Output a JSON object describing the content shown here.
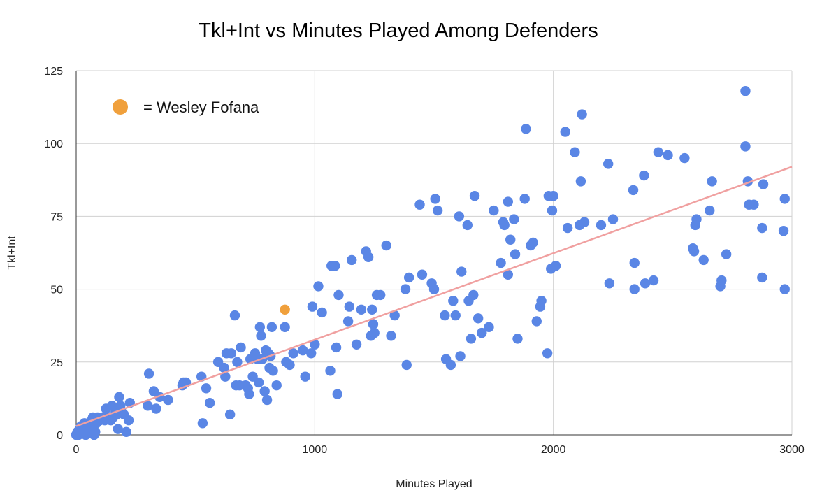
{
  "chart_data": {
    "type": "scatter",
    "title": "Tkl+Int vs Minutes Played Among Defenders",
    "xlabel": "Minutes Played",
    "ylabel": "Tkl+Int",
    "xlim": [
      0,
      3000
    ],
    "ylim": [
      0,
      125
    ],
    "xticks": [
      "0",
      "1000",
      "2000",
      "3000"
    ],
    "xtick_values": [
      0,
      1000,
      2000,
      3000
    ],
    "yticks": [
      "0",
      "25",
      "50",
      "75",
      "100",
      "125"
    ],
    "ytick_values": [
      0,
      25,
      50,
      75,
      100,
      125
    ],
    "grid": true,
    "legend": {
      "placement": "top-left",
      "label": "= Wesley Fofana",
      "color": "#f0a03c"
    },
    "trendline": {
      "x": [
        0,
        3000
      ],
      "y": [
        3,
        92
      ],
      "color": "#f0a0a0"
    },
    "colors": {
      "points": "#5a86e5",
      "highlight": "#f0a03c"
    },
    "highlight": {
      "x": 875,
      "y": 43
    },
    "points": [
      [
        0,
        0
      ],
      [
        5,
        1
      ],
      [
        10,
        0
      ],
      [
        15,
        2
      ],
      [
        20,
        3
      ],
      [
        25,
        1
      ],
      [
        30,
        2
      ],
      [
        35,
        4
      ],
      [
        40,
        0
      ],
      [
        45,
        3
      ],
      [
        50,
        2
      ],
      [
        55,
        1
      ],
      [
        60,
        3
      ],
      [
        65,
        5
      ],
      [
        70,
        6
      ],
      [
        75,
        0
      ],
      [
        80,
        1
      ],
      [
        85,
        4
      ],
      [
        90,
        6
      ],
      [
        100,
        5
      ],
      [
        110,
        6
      ],
      [
        120,
        5
      ],
      [
        125,
        9
      ],
      [
        135,
        6
      ],
      [
        145,
        5
      ],
      [
        150,
        10
      ],
      [
        155,
        6
      ],
      [
        165,
        8
      ],
      [
        170,
        7
      ],
      [
        175,
        2
      ],
      [
        180,
        13
      ],
      [
        185,
        10
      ],
      [
        190,
        8
      ],
      [
        200,
        7
      ],
      [
        210,
        1
      ],
      [
        220,
        5
      ],
      [
        225,
        11
      ],
      [
        300,
        10
      ],
      [
        305,
        21
      ],
      [
        325,
        15
      ],
      [
        335,
        9
      ],
      [
        350,
        13
      ],
      [
        385,
        12
      ],
      [
        445,
        17
      ],
      [
        450,
        18
      ],
      [
        460,
        18
      ],
      [
        525,
        20
      ],
      [
        530,
        4
      ],
      [
        545,
        16
      ],
      [
        560,
        11
      ],
      [
        595,
        25
      ],
      [
        620,
        23
      ],
      [
        625,
        20
      ],
      [
        630,
        28
      ],
      [
        645,
        7
      ],
      [
        650,
        28
      ],
      [
        665,
        41
      ],
      [
        670,
        17
      ],
      [
        675,
        25
      ],
      [
        685,
        17
      ],
      [
        690,
        30
      ],
      [
        710,
        17
      ],
      [
        720,
        16
      ],
      [
        725,
        14
      ],
      [
        730,
        26
      ],
      [
        740,
        20
      ],
      [
        750,
        28
      ],
      [
        760,
        26
      ],
      [
        765,
        18
      ],
      [
        770,
        37
      ],
      [
        775,
        34
      ],
      [
        780,
        26
      ],
      [
        790,
        15
      ],
      [
        795,
        29
      ],
      [
        800,
        12
      ],
      [
        805,
        28
      ],
      [
        810,
        23
      ],
      [
        815,
        27
      ],
      [
        820,
        37
      ],
      [
        825,
        22
      ],
      [
        840,
        17
      ],
      [
        875,
        37
      ],
      [
        880,
        25
      ],
      [
        895,
        24
      ],
      [
        910,
        28
      ],
      [
        950,
        29
      ],
      [
        960,
        20
      ],
      [
        985,
        28
      ],
      [
        990,
        44
      ],
      [
        1000,
        31
      ],
      [
        1015,
        51
      ],
      [
        1030,
        42
      ],
      [
        1065,
        22
      ],
      [
        1070,
        58
      ],
      [
        1085,
        58
      ],
      [
        1090,
        30
      ],
      [
        1095,
        14
      ],
      [
        1100,
        48
      ],
      [
        1140,
        39
      ],
      [
        1145,
        44
      ],
      [
        1155,
        60
      ],
      [
        1175,
        31
      ],
      [
        1195,
        43
      ],
      [
        1215,
        63
      ],
      [
        1225,
        61
      ],
      [
        1235,
        34
      ],
      [
        1240,
        43
      ],
      [
        1245,
        38
      ],
      [
        1250,
        35
      ],
      [
        1260,
        48
      ],
      [
        1275,
        48
      ],
      [
        1300,
        65
      ],
      [
        1320,
        34
      ],
      [
        1335,
        41
      ],
      [
        1380,
        50
      ],
      [
        1385,
        24
      ],
      [
        1395,
        54
      ],
      [
        1440,
        79
      ],
      [
        1450,
        55
      ],
      [
        1490,
        52
      ],
      [
        1500,
        50
      ],
      [
        1505,
        81
      ],
      [
        1515,
        77
      ],
      [
        1545,
        41
      ],
      [
        1550,
        26
      ],
      [
        1570,
        24
      ],
      [
        1580,
        46
      ],
      [
        1590,
        41
      ],
      [
        1605,
        75
      ],
      [
        1610,
        27
      ],
      [
        1615,
        56
      ],
      [
        1640,
        72
      ],
      [
        1645,
        46
      ],
      [
        1655,
        33
      ],
      [
        1665,
        48
      ],
      [
        1670,
        82
      ],
      [
        1685,
        40
      ],
      [
        1700,
        35
      ],
      [
        1730,
        37
      ],
      [
        1750,
        77
      ],
      [
        1780,
        59
      ],
      [
        1790,
        73
      ],
      [
        1795,
        72
      ],
      [
        1810,
        80
      ],
      [
        1810,
        55
      ],
      [
        1820,
        67
      ],
      [
        1835,
        74
      ],
      [
        1840,
        62
      ],
      [
        1850,
        33
      ],
      [
        1880,
        81
      ],
      [
        1885,
        105
      ],
      [
        1905,
        65
      ],
      [
        1915,
        66
      ],
      [
        1930,
        39
      ],
      [
        1945,
        44
      ],
      [
        1950,
        46
      ],
      [
        1975,
        28
      ],
      [
        1980,
        82
      ],
      [
        1990,
        57
      ],
      [
        1995,
        77
      ],
      [
        2000,
        82
      ],
      [
        2010,
        58
      ],
      [
        2050,
        104
      ],
      [
        2060,
        71
      ],
      [
        2090,
        97
      ],
      [
        2110,
        72
      ],
      [
        2115,
        87
      ],
      [
        2120,
        110
      ],
      [
        2130,
        73
      ],
      [
        2200,
        72
      ],
      [
        2230,
        93
      ],
      [
        2235,
        52
      ],
      [
        2250,
        74
      ],
      [
        2335,
        84
      ],
      [
        2340,
        50
      ],
      [
        2340,
        59
      ],
      [
        2380,
        89
      ],
      [
        2385,
        52
      ],
      [
        2420,
        53
      ],
      [
        2440,
        97
      ],
      [
        2480,
        96
      ],
      [
        2550,
        95
      ],
      [
        2585,
        64
      ],
      [
        2590,
        63
      ],
      [
        2595,
        72
      ],
      [
        2600,
        74
      ],
      [
        2630,
        60
      ],
      [
        2655,
        77
      ],
      [
        2665,
        87
      ],
      [
        2700,
        51
      ],
      [
        2705,
        53
      ],
      [
        2725,
        62
      ],
      [
        2805,
        118
      ],
      [
        2805,
        99
      ],
      [
        2815,
        87
      ],
      [
        2820,
        79
      ],
      [
        2840,
        79
      ],
      [
        2875,
        71
      ],
      [
        2875,
        54
      ],
      [
        2880,
        86
      ],
      [
        2965,
        70
      ],
      [
        2970,
        50
      ],
      [
        2970,
        81
      ]
    ]
  }
}
